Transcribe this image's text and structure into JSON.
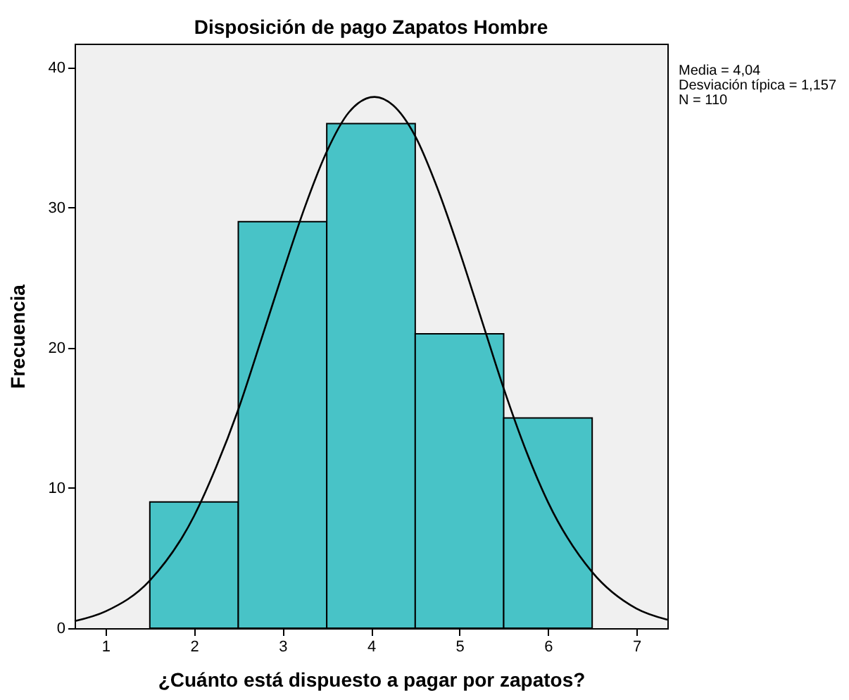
{
  "chart_data": {
    "type": "histogram",
    "title": "Disposición de pago Zapatos Hombre",
    "xlabel": "¿Cuánto está dispuesto a pagar por zapatos?",
    "ylabel": "Frecuencia",
    "bins": [
      1.5,
      2.5,
      3.5,
      4.5,
      5.5,
      6.5
    ],
    "values": [
      9,
      29,
      36,
      21,
      15
    ],
    "color": "#48c3c7",
    "series": [
      {
        "type": "line",
        "color": "#000000",
        "x": [
          0.65,
          1.0,
          1.5,
          2.0,
          2.25,
          2.5,
          2.75,
          3.0,
          3.25,
          3.5,
          3.75,
          4.04,
          4.25,
          4.5,
          4.75,
          5.0,
          5.25,
          5.5,
          5.75,
          6.0,
          6.5,
          7.0,
          7.35
        ],
        "values": [
          0.5,
          1.2,
          3.4,
          8.0,
          11.5,
          15.6,
          20.4,
          25.3,
          30.0,
          34.0,
          36.8,
          37.9,
          37.3,
          35.1,
          31.4,
          26.9,
          22.0,
          17.1,
          12.7,
          9.0,
          4.0,
          1.4,
          0.6
        ]
      }
    ],
    "xlim": [
      0.65,
      7.35
    ],
    "ylim": [
      0,
      41.7
    ],
    "xticks": [
      1,
      2,
      3,
      4,
      5,
      6,
      7
    ],
    "yticks": [
      0,
      10,
      20,
      30,
      40
    ],
    "grid": false,
    "annotations": [
      "Media = 4,04",
      "Desviación típica = 1,157",
      "N = 110"
    ]
  }
}
